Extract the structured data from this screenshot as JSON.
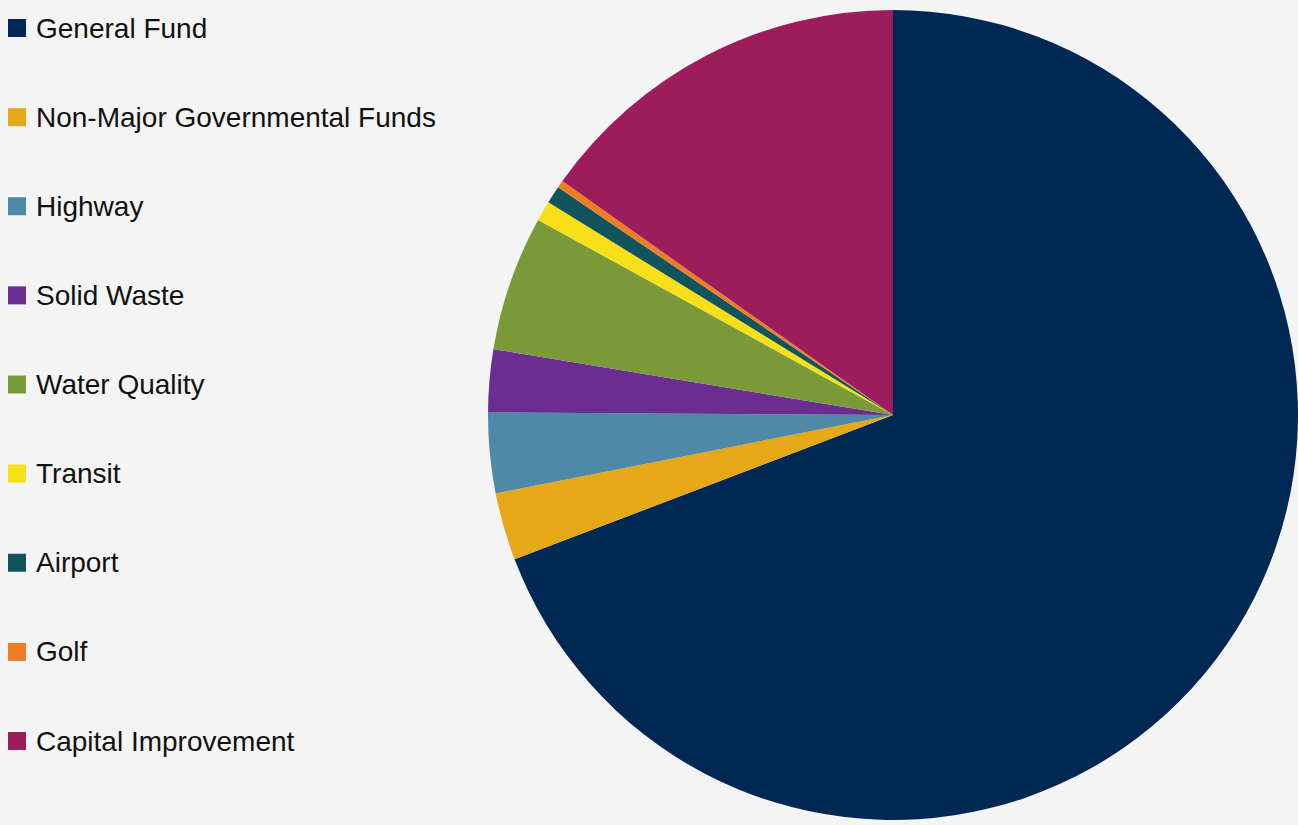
{
  "chart_data": {
    "type": "pie",
    "categories": [
      "General Fund",
      "Non-Major Governmental Funds",
      "Highway",
      "Solid Waste",
      "Water Quality",
      "Transit",
      "Airport",
      "Golf",
      "Capital Improvement"
    ],
    "values": [
      69.2,
      2.7,
      3.2,
      2.5,
      5.4,
      0.8,
      0.7,
      0.3,
      15.2
    ],
    "colors": [
      "#002855",
      "#e6a817",
      "#4e89a8",
      "#6a2d91",
      "#7a9a3a",
      "#f7e017",
      "#12545e",
      "#f07c24",
      "#9c1c5c"
    ],
    "legend": "left"
  }
}
